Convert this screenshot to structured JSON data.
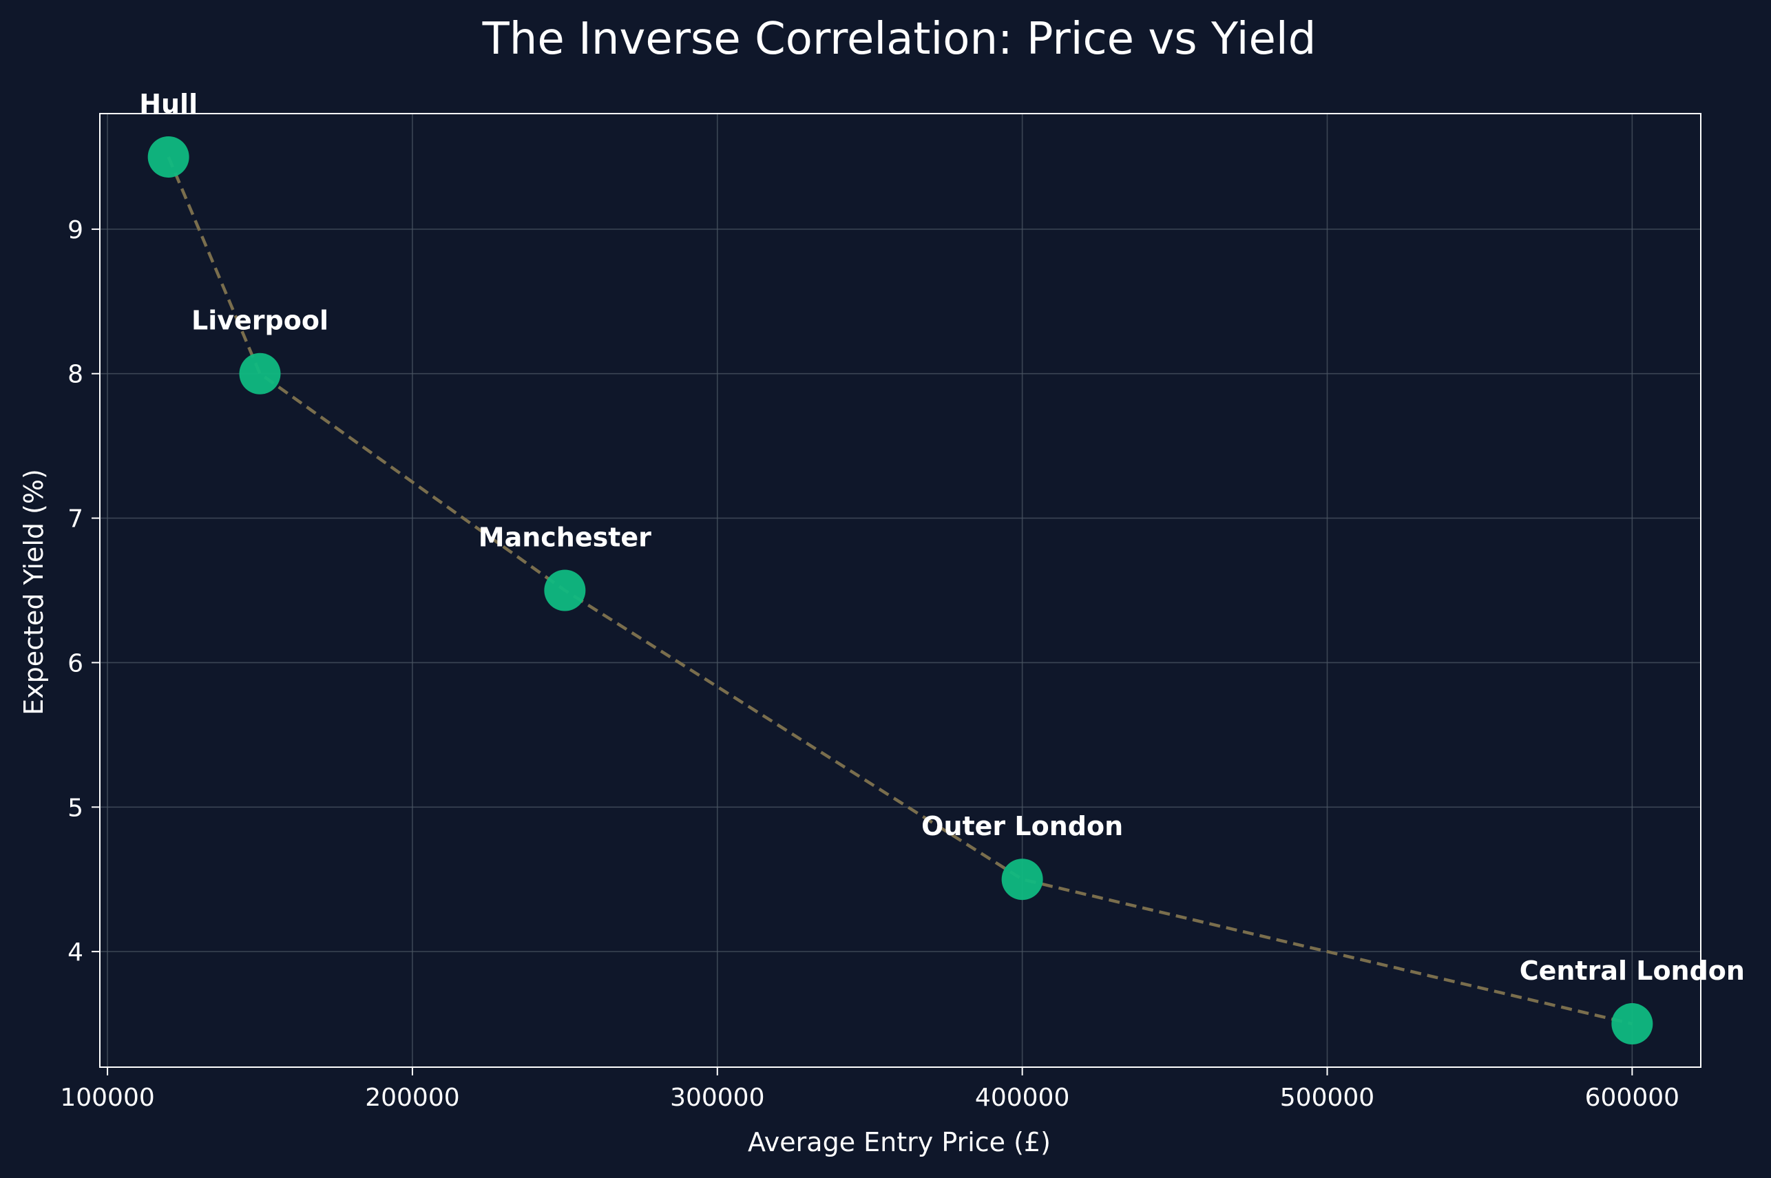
{
  "colors": {
    "background": "#0f172a",
    "text": "#ffffff",
    "marker": "#10b981",
    "line": "#7a6e4d",
    "grid": "#4b5563",
    "axes": "#ffffff"
  },
  "chart_data": {
    "type": "scatter",
    "title": "The Inverse Correlation: Price vs Yield",
    "xlabel": "Average Entry Price (£)",
    "ylabel": "Expected Yield (%)",
    "xlim": [
      97500,
      622500
    ],
    "ylim": [
      3.2,
      9.8
    ],
    "xticks": [
      100000,
      200000,
      300000,
      400000,
      500000,
      600000
    ],
    "yticks": [
      4,
      5,
      6,
      7,
      8,
      9
    ],
    "grid": true,
    "line_style": "dashed",
    "points": [
      {
        "label": "Hull",
        "x": 120000,
        "y": 9.5
      },
      {
        "label": "Liverpool",
        "x": 150000,
        "y": 8.0
      },
      {
        "label": "Manchester",
        "x": 250000,
        "y": 6.5
      },
      {
        "label": "Outer London",
        "x": 400000,
        "y": 4.5
      },
      {
        "label": "Central London",
        "x": 600000,
        "y": 3.5
      }
    ]
  }
}
